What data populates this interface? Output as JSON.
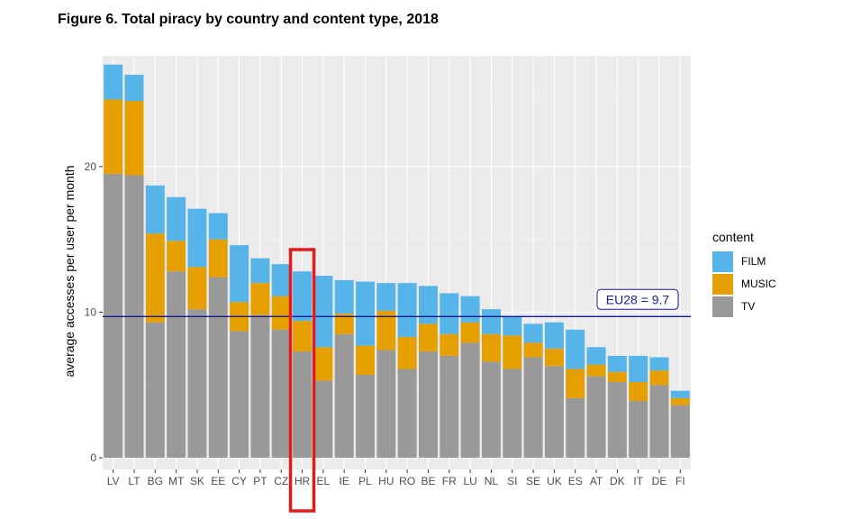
{
  "figure": {
    "title": "Figure 6. Total piracy by country and content type, 2018"
  },
  "chart_data": {
    "type": "bar",
    "stacked": true,
    "title": "Figure 6. Total piracy by country and content type, 2018",
    "xlabel": "",
    "ylabel": "average accesses per user per month",
    "ylim": [
      -0.8,
      27.6
    ],
    "yticks": [
      0,
      10,
      20
    ],
    "grid": true,
    "legend_title": "content",
    "legend_position": "right",
    "categories": [
      "LV",
      "LT",
      "BG",
      "MT",
      "SK",
      "EE",
      "CY",
      "PT",
      "CZ",
      "HR",
      "EL",
      "IE",
      "PL",
      "HU",
      "RO",
      "BE",
      "FR",
      "LU",
      "NL",
      "SI",
      "SE",
      "UK",
      "ES",
      "AT",
      "DK",
      "IT",
      "DE",
      "FI"
    ],
    "series": [
      {
        "name": "TV",
        "color": "#999999",
        "values": [
          19.5,
          19.4,
          9.3,
          12.8,
          10.2,
          12.4,
          8.7,
          9.8,
          8.8,
          7.3,
          5.3,
          8.5,
          5.7,
          7.4,
          6.1,
          7.3,
          7.0,
          7.9,
          6.6,
          6.1,
          6.9,
          6.3,
          4.1,
          5.6,
          5.2,
          3.9,
          5.0,
          3.6
        ]
      },
      {
        "name": "MUSIC",
        "color": "#E69F00",
        "values": [
          5.1,
          5.1,
          6.1,
          2.1,
          2.9,
          2.6,
          2.0,
          2.2,
          2.3,
          2.1,
          2.3,
          1.4,
          2.0,
          2.7,
          2.2,
          1.9,
          1.5,
          1.4,
          1.9,
          2.3,
          1.0,
          1.2,
          2.0,
          0.8,
          0.7,
          1.3,
          1.0,
          0.5
        ]
      },
      {
        "name": "FILM",
        "color": "#56B4E9",
        "values": [
          2.4,
          1.8,
          3.3,
          3.0,
          4.0,
          1.8,
          3.9,
          1.7,
          2.2,
          3.4,
          4.9,
          2.3,
          4.4,
          1.9,
          3.7,
          2.6,
          2.8,
          1.8,
          1.7,
          1.3,
          1.3,
          1.8,
          2.7,
          1.2,
          1.1,
          1.8,
          0.9,
          0.5
        ]
      }
    ],
    "reference_line": {
      "value": 9.7,
      "label": "EU28 = 9.7",
      "color": "#1a1a8c"
    },
    "highlight": {
      "category": "HR",
      "color": "#e31a1c"
    }
  }
}
